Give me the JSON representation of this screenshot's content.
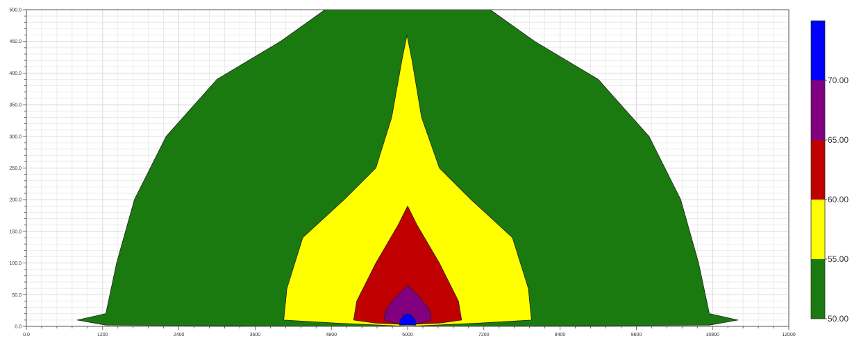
{
  "chart_data": {
    "type": "contour",
    "title": "",
    "xlabel": "",
    "ylabel": "",
    "xlim": [
      0,
      12000
    ],
    "ylim": [
      0,
      500
    ],
    "grid": true,
    "x_ticks": [
      {
        "value": 0,
        "label": "0.0"
      },
      {
        "value": 1200,
        "label": "1200"
      },
      {
        "value": 2400,
        "label": "2400"
      },
      {
        "value": 3600,
        "label": "3600"
      },
      {
        "value": 4800,
        "label": "4800"
      },
      {
        "value": 6000,
        "label": "6000"
      },
      {
        "value": 7200,
        "label": "7200"
      },
      {
        "value": 8400,
        "label": "8400"
      },
      {
        "value": 9600,
        "label": "9600"
      },
      {
        "value": 10800,
        "label": "10800"
      },
      {
        "value": 12000,
        "label": "12000"
      }
    ],
    "y_ticks": [
      {
        "value": 0,
        "label": "0.0"
      },
      {
        "value": 50,
        "label": "50.0"
      },
      {
        "value": 100,
        "label": "100.0"
      },
      {
        "value": 150,
        "label": "150.0"
      },
      {
        "value": 200,
        "label": "200.0"
      },
      {
        "value": 250,
        "label": "250.0"
      },
      {
        "value": 300,
        "label": "300.0"
      },
      {
        "value": 350,
        "label": "350.0"
      },
      {
        "value": 400,
        "label": "400.0"
      },
      {
        "value": 450,
        "label": "450.0"
      },
      {
        "value": 500,
        "label": "500.0"
      }
    ],
    "levels": [
      {
        "min": 50,
        "max": 55,
        "color": "#1a7a10"
      },
      {
        "min": 55,
        "max": 60,
        "color": "#ffff00"
      },
      {
        "min": 60,
        "max": 65,
        "color": "#c00000"
      },
      {
        "min": 65,
        "max": 70,
        "color": "#800080"
      },
      {
        "min": 70,
        "max": 75,
        "color": "#0000ff"
      }
    ],
    "legend": {
      "position": "right",
      "labels": [
        "50.00",
        "55.00",
        "60.00",
        "65.00",
        "70.00"
      ]
    },
    "regions": [
      {
        "level": 50,
        "color": "#1a7a10",
        "outline": [
          [
            800,
            10
          ],
          [
            1250,
            20
          ],
          [
            1420,
            100
          ],
          [
            1700,
            200
          ],
          [
            2200,
            300
          ],
          [
            3000,
            390
          ],
          [
            4000,
            450
          ],
          [
            4700,
            500
          ],
          [
            7300,
            500
          ],
          [
            8000,
            450
          ],
          [
            9000,
            390
          ],
          [
            9800,
            300
          ],
          [
            10300,
            200
          ],
          [
            10580,
            100
          ],
          [
            10750,
            20
          ],
          [
            11200,
            10
          ],
          [
            10750,
            2
          ],
          [
            7000,
            0
          ],
          [
            5000,
            0
          ],
          [
            1250,
            2
          ]
        ]
      },
      {
        "level": 55,
        "color": "#ffff00",
        "outline": [
          [
            4050,
            10
          ],
          [
            4100,
            60
          ],
          [
            4350,
            140
          ],
          [
            5000,
            200
          ],
          [
            5500,
            250
          ],
          [
            5750,
            330
          ],
          [
            5910,
            420
          ],
          [
            5990,
            460
          ],
          [
            6070,
            420
          ],
          [
            6220,
            330
          ],
          [
            6500,
            250
          ],
          [
            7000,
            200
          ],
          [
            7650,
            140
          ],
          [
            7900,
            60
          ],
          [
            7950,
            10
          ],
          [
            7100,
            5
          ],
          [
            6000,
            0
          ],
          [
            4900,
            5
          ]
        ]
      },
      {
        "level": 60,
        "color": "#c00000",
        "outline": [
          [
            5150,
            10
          ],
          [
            5200,
            40
          ],
          [
            5500,
            100
          ],
          [
            5850,
            160
          ],
          [
            6000,
            190
          ],
          [
            6150,
            160
          ],
          [
            6500,
            100
          ],
          [
            6800,
            40
          ],
          [
            6850,
            10
          ],
          [
            6500,
            5
          ],
          [
            6000,
            3
          ],
          [
            5500,
            5
          ]
        ]
      },
      {
        "level": 65,
        "color": "#800080",
        "outline": [
          [
            5630,
            10
          ],
          [
            5650,
            25
          ],
          [
            5800,
            45
          ],
          [
            6000,
            65
          ],
          [
            6200,
            45
          ],
          [
            6350,
            25
          ],
          [
            6370,
            10
          ],
          [
            6200,
            5
          ],
          [
            6000,
            3
          ],
          [
            5800,
            5
          ]
        ]
      },
      {
        "level": 70,
        "color": "#0000ff",
        "outline": [
          [
            5870,
            2
          ],
          [
            5880,
            10
          ],
          [
            5940,
            18
          ],
          [
            6000,
            20
          ],
          [
            6060,
            18
          ],
          [
            6120,
            10
          ],
          [
            6130,
            2
          ]
        ]
      }
    ]
  }
}
